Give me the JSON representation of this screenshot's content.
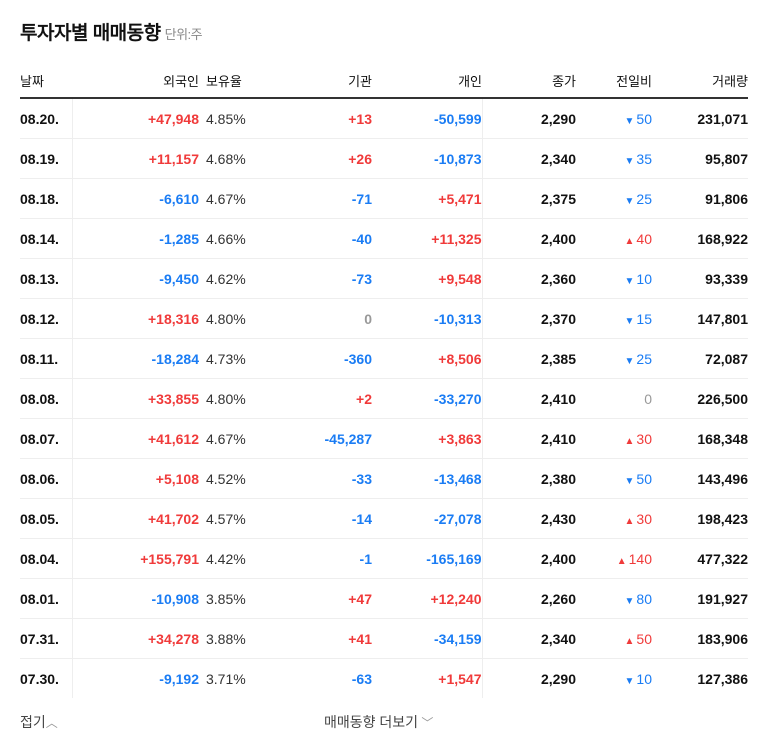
{
  "title": "투자자별 매매동향",
  "unit": "단위:주",
  "headers": {
    "date": "날짜",
    "foreign": "외국인",
    "ratio": "보유율",
    "inst": "기관",
    "ind": "개인",
    "close": "종가",
    "change": "전일비",
    "volume": "거래량"
  },
  "colors": {
    "up": "#f03a3a",
    "down": "#1a7cf4"
  },
  "rows": [
    [
      "08.20.",
      "+47,948",
      "4.85%",
      "+13",
      "-50,599",
      "2,290",
      "down",
      "50",
      "231,071"
    ],
    [
      "08.19.",
      "+11,157",
      "4.68%",
      "+26",
      "-10,873",
      "2,340",
      "down",
      "35",
      "95,807"
    ],
    [
      "08.18.",
      "-6,610",
      "4.67%",
      "-71",
      "+5,471",
      "2,375",
      "down",
      "25",
      "91,806"
    ],
    [
      "08.14.",
      "-1,285",
      "4.66%",
      "-40",
      "+11,325",
      "2,400",
      "up",
      "40",
      "168,922"
    ],
    [
      "08.13.",
      "-9,450",
      "4.62%",
      "-73",
      "+9,548",
      "2,360",
      "down",
      "10",
      "93,339"
    ],
    [
      "08.12.",
      "+18,316",
      "4.80%",
      "0",
      "-10,313",
      "2,370",
      "down",
      "15",
      "147,801"
    ],
    [
      "08.11.",
      "-18,284",
      "4.73%",
      "-360",
      "+8,506",
      "2,385",
      "down",
      "25",
      "72,087"
    ],
    [
      "08.08.",
      "+33,855",
      "4.80%",
      "+2",
      "-33,270",
      "2,410",
      "flat",
      "0",
      "226,500"
    ],
    [
      "08.07.",
      "+41,612",
      "4.67%",
      "-45,287",
      "+3,863",
      "2,410",
      "up",
      "30",
      "168,348"
    ],
    [
      "08.06.",
      "+5,108",
      "4.52%",
      "-33",
      "-13,468",
      "2,380",
      "down",
      "50",
      "143,496"
    ],
    [
      "08.05.",
      "+41,702",
      "4.57%",
      "-14",
      "-27,078",
      "2,430",
      "up",
      "30",
      "198,423"
    ],
    [
      "08.04.",
      "+155,791",
      "4.42%",
      "-1",
      "-165,169",
      "2,400",
      "up",
      "140",
      "477,322"
    ],
    [
      "08.01.",
      "-10,908",
      "3.85%",
      "+47",
      "+12,240",
      "2,260",
      "down",
      "80",
      "191,927"
    ],
    [
      "07.31.",
      "+34,278",
      "3.88%",
      "+41",
      "-34,159",
      "2,340",
      "up",
      "50",
      "183,906"
    ],
    [
      "07.30.",
      "-9,192",
      "3.71%",
      "-63",
      "+1,547",
      "2,290",
      "down",
      "10",
      "127,386"
    ]
  ],
  "footer": {
    "collapse": "접기",
    "more": "매매동향 더보기"
  }
}
